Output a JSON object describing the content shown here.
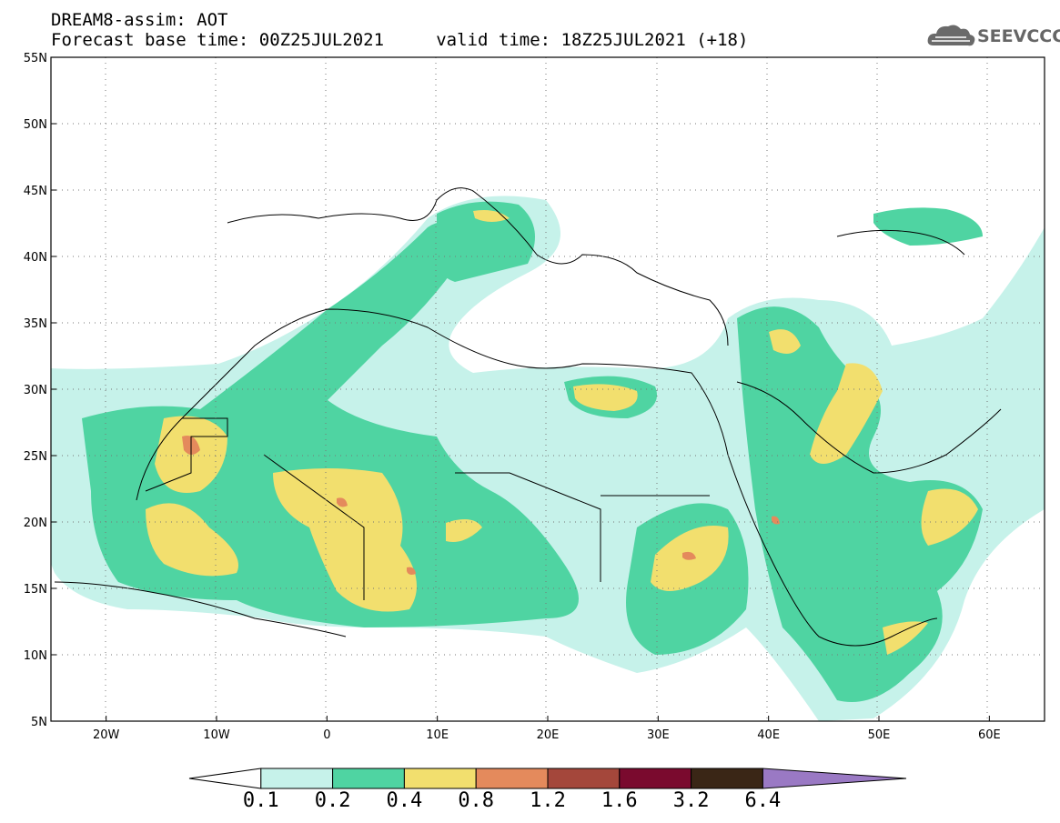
{
  "title": {
    "line1": "DREAM8-assim: AOT",
    "line2": "Forecast base time: 00Z25JUL2021     valid time: 18Z25JUL2021 (+18)"
  },
  "logo": {
    "text": "SEEVCCC",
    "icon": "cloud-icon",
    "color": "#666666"
  },
  "map": {
    "lat_labels": [
      "55N",
      "50N",
      "45N",
      "40N",
      "35N",
      "30N",
      "25N",
      "20N",
      "15N",
      "10N",
      "5N"
    ],
    "lon_labels": [
      "20W",
      "10W",
      "0",
      "10E",
      "20E",
      "30E",
      "40E",
      "50E",
      "60E"
    ],
    "lat_range": [
      5,
      55
    ],
    "lon_range": [
      -25,
      65
    ],
    "grid": "dotted"
  },
  "colorbar": {
    "labels": [
      "0.1",
      "0.2",
      "0.4",
      "0.8",
      "1.2",
      "1.6",
      "3.2",
      "6.4"
    ],
    "colors": [
      "#ffffff",
      "#c6f2ea",
      "#4fd4a2",
      "#f2df6e",
      "#e48a5c",
      "#a4473b",
      "#7a0a2e",
      "#3a2616",
      "#9a79c4"
    ]
  }
}
